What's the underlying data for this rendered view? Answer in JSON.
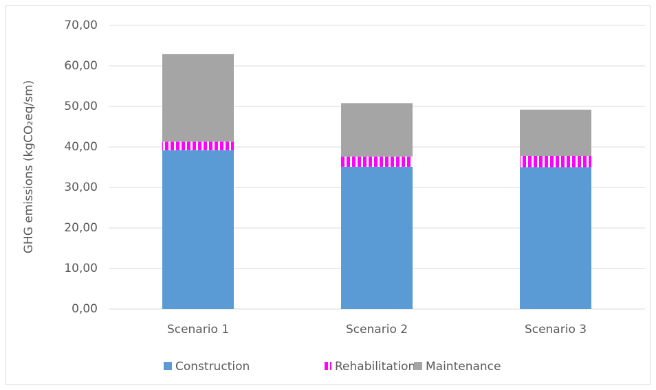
{
  "chart_data": {
    "type": "stacked_bar",
    "y_label": "GHG emissions (kgCO₂eq/sm)",
    "categories": [
      "Scenario 1",
      "Scenario 2",
      "Scenario 3"
    ],
    "series": [
      {
        "name": "Construction",
        "color": "#5b9bd5",
        "values": [
          39.2,
          35.1,
          35.0
        ]
      },
      {
        "name": "Rehabilitation",
        "color": "#ff00ff",
        "pattern": "vertical-stripes",
        "values": [
          2.1,
          2.5,
          2.8
        ]
      },
      {
        "name": "Maintenance",
        "color": "#a5a5a5",
        "values": [
          21.6,
          13.2,
          11.4
        ]
      }
    ],
    "ylim": [
      0,
      70
    ],
    "yticks": [
      {
        "value": 0,
        "label": "0,00"
      },
      {
        "value": 10,
        "label": "10,00"
      },
      {
        "value": 20,
        "label": "20,00"
      },
      {
        "value": 30,
        "label": "30,00"
      },
      {
        "value": 40,
        "label": "40,00"
      },
      {
        "value": 50,
        "label": "50,00"
      },
      {
        "value": 60,
        "label": "60,00"
      },
      {
        "value": 70,
        "label": "70,00"
      }
    ],
    "grid": true,
    "legend": "bottom"
  }
}
